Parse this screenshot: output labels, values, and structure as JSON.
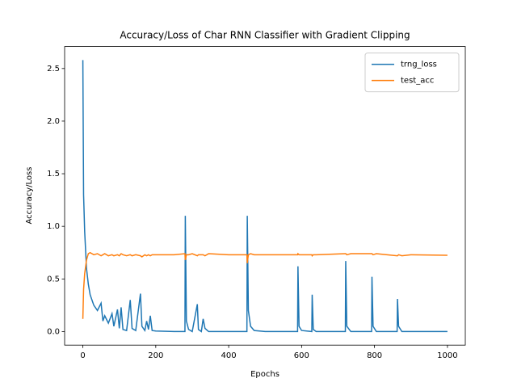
{
  "chart_data": {
    "type": "line",
    "title": "Accuracy/Loss of Char RNN Classifier with Gradient Clipping",
    "x_label": "Epochs",
    "y_label": "Accuracy/Loss",
    "x": [
      0,
      2,
      5,
      10,
      15,
      20,
      25,
      30,
      40,
      50,
      55,
      60,
      70,
      80,
      85,
      95,
      100,
      105,
      110,
      120,
      130,
      135,
      145,
      158,
      162,
      170,
      175,
      180,
      185,
      190,
      200,
      250,
      280,
      281,
      284,
      290,
      300,
      314,
      317,
      325,
      330,
      335,
      345,
      400,
      450,
      451,
      454,
      460,
      470,
      500,
      589,
      590,
      593,
      600,
      628,
      629,
      632,
      640,
      720,
      721,
      724,
      735,
      792,
      793,
      796,
      805,
      862,
      863,
      866,
      875,
      900,
      1000
    ],
    "series": [
      {
        "name": "trng_loss",
        "color": "#1f77b4",
        "values": [
          2.58,
          1.3,
          0.95,
          0.6,
          0.45,
          0.35,
          0.3,
          0.25,
          0.2,
          0.27,
          0.1,
          0.15,
          0.08,
          0.17,
          0.05,
          0.21,
          0.03,
          0.23,
          0.02,
          0.01,
          0.3,
          0.03,
          0.01,
          0.36,
          0.05,
          0.01,
          0.1,
          0.02,
          0.15,
          0.01,
          0.005,
          0,
          0,
          1.1,
          0.1,
          0.02,
          0,
          0.26,
          0.02,
          0,
          0.12,
          0.03,
          0,
          0,
          0,
          1.1,
          0.2,
          0.05,
          0.01,
          0,
          0,
          0.62,
          0.05,
          0.01,
          0,
          0.35,
          0.02,
          0,
          0,
          0.67,
          0.05,
          0,
          0,
          0.52,
          0.05,
          0,
          0,
          0.31,
          0.05,
          0,
          0,
          0
        ]
      },
      {
        "name": "test_acc",
        "color": "#ff7f0e",
        "values": [
          0.12,
          0.4,
          0.55,
          0.68,
          0.74,
          0.75,
          0.74,
          0.73,
          0.74,
          0.72,
          0.73,
          0.74,
          0.72,
          0.73,
          0.72,
          0.73,
          0.72,
          0.74,
          0.73,
          0.72,
          0.73,
          0.72,
          0.73,
          0.72,
          0.71,
          0.73,
          0.72,
          0.73,
          0.72,
          0.73,
          0.73,
          0.73,
          0.74,
          0.68,
          0.73,
          0.73,
          0.74,
          0.72,
          0.73,
          0.73,
          0.73,
          0.72,
          0.74,
          0.73,
          0.73,
          0.65,
          0.73,
          0.74,
          0.73,
          0.73,
          0.73,
          0.74,
          0.73,
          0.73,
          0.73,
          0.72,
          0.73,
          0.73,
          0.74,
          0.74,
          0.73,
          0.74,
          0.74,
          0.74,
          0.73,
          0.74,
          0.72,
          0.72,
          0.73,
          0.72,
          0.73,
          0.725
        ]
      }
    ],
    "xlim": [
      -50,
      1049
    ],
    "ylim": [
      -0.129,
      2.709
    ],
    "xticks": [
      0,
      200,
      400,
      600,
      800,
      1000
    ],
    "yticks": [
      {
        "value": 0,
        "label": "0.0"
      },
      0.5,
      {
        "value": 1,
        "label": "1.0"
      },
      1.5,
      {
        "value": 2,
        "label": "2.0"
      },
      2.5
    ],
    "legend": "upper right"
  }
}
